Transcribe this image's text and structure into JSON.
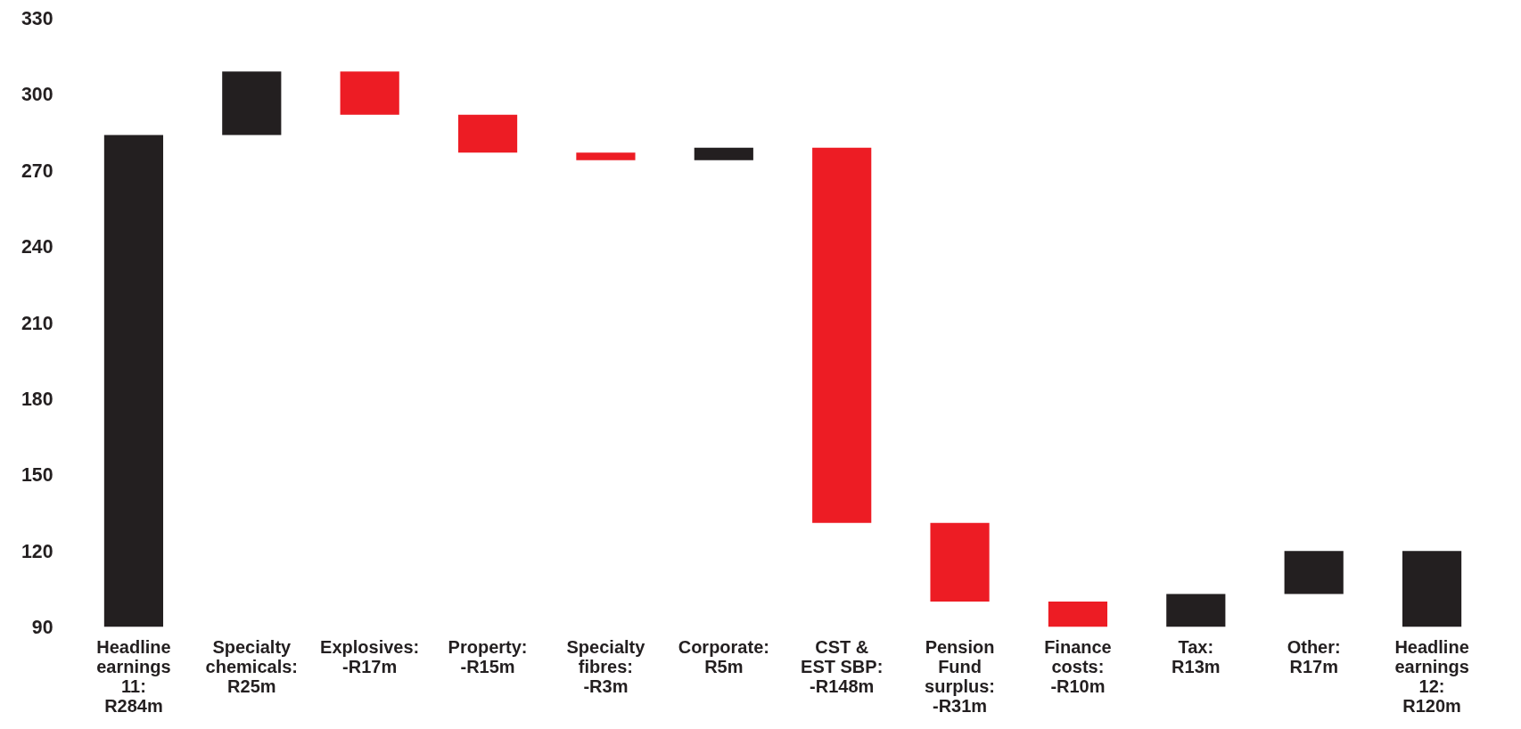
{
  "chart_data": {
    "type": "bar",
    "categories": [
      "Headline\nearnings\n11:\nR284m",
      "Specialty\nchemicals:\nR25m",
      "Explosives:\n-R17m",
      "Property:\n-R15m",
      "Specialty\nfibres:\n-R3m",
      "Corporate:\nR5m",
      "CST &\nEST SBP:\n-R148m",
      "Pension\nFund\nsurplus:\n-R31m",
      "Finance\ncosts:\n-R10m",
      "Tax:\nR13m",
      "Other:\nR17m",
      "Headline\nearnings\n12:\nR120m"
    ],
    "values": [
      284,
      25,
      -17,
      -15,
      -3,
      5,
      -148,
      -31,
      -10,
      13,
      17,
      120
    ],
    "base": [
      0,
      284,
      309,
      292,
      277,
      274,
      279,
      131,
      100,
      90,
      103,
      0
    ],
    "colors": [
      "#231f20",
      "#231f20",
      "#ed1c24",
      "#ed1c24",
      "#ed1c24",
      "#231f20",
      "#ed1c24",
      "#ed1c24",
      "#ed1c24",
      "#231f20",
      "#231f20",
      "#231f20"
    ],
    "ylim": [
      90,
      330
    ],
    "yticks": [
      90,
      120,
      150,
      180,
      210,
      240,
      270,
      300,
      330
    ],
    "grid": false
  }
}
